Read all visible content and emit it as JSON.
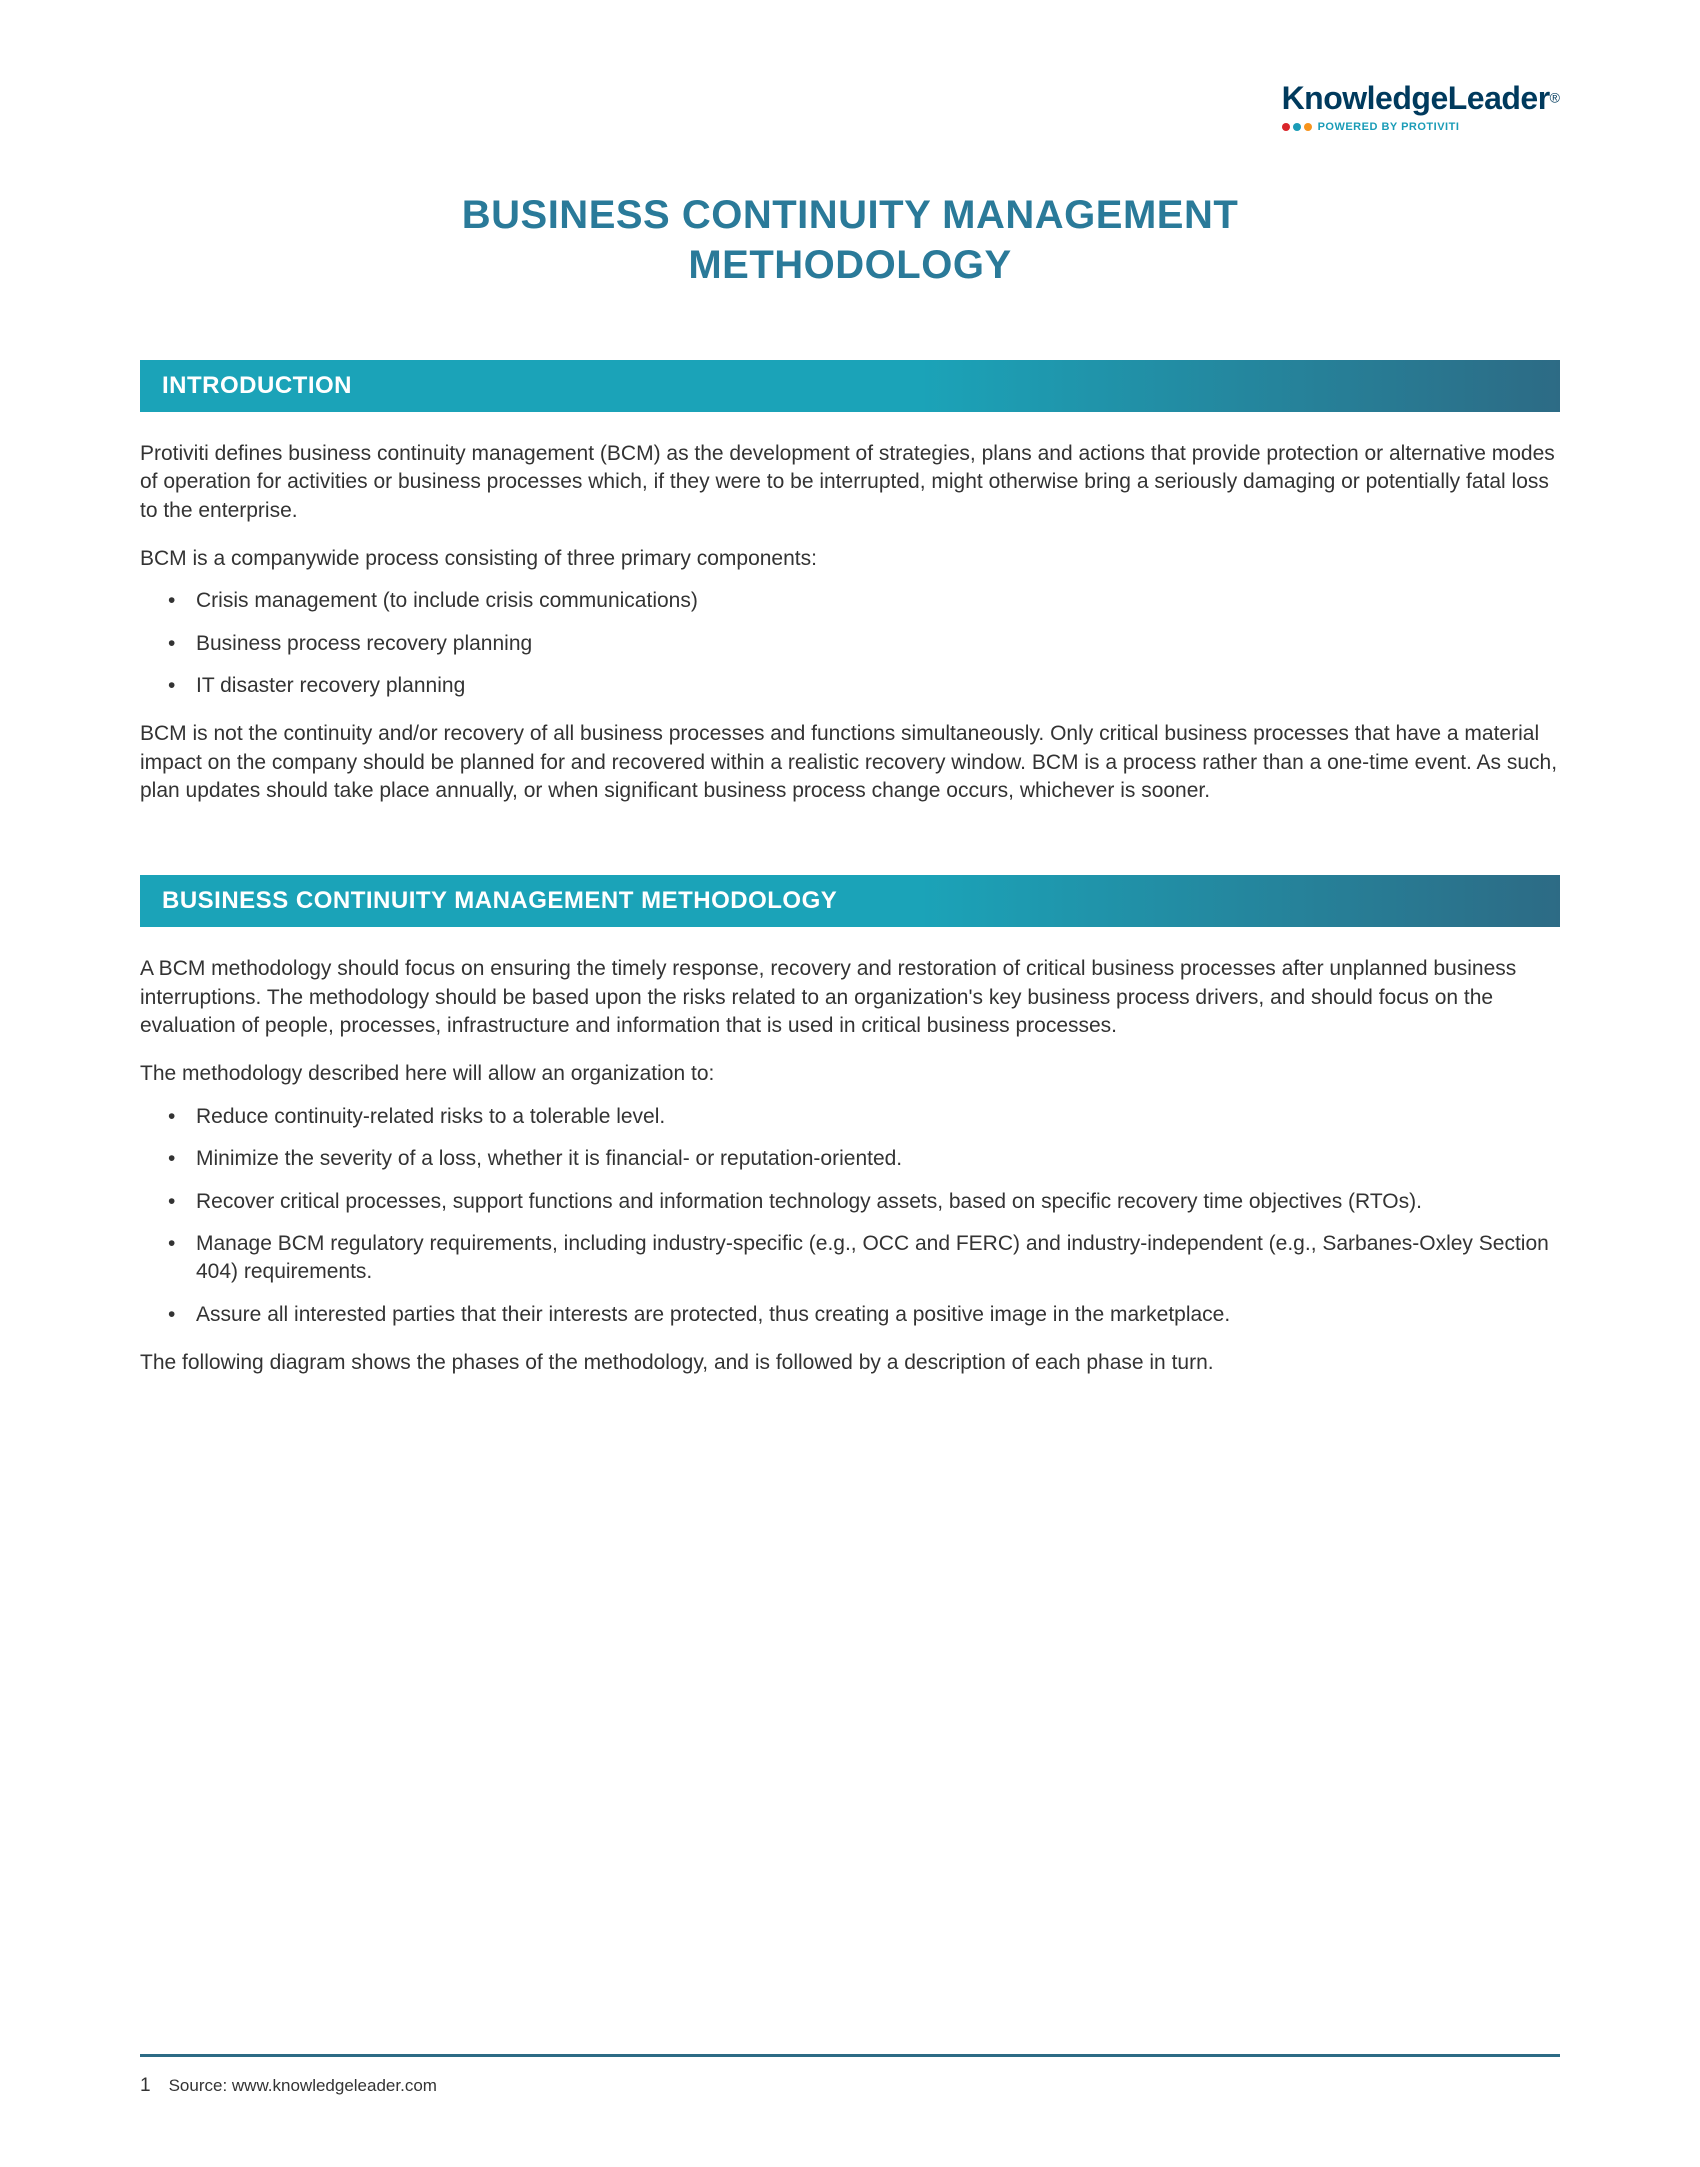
{
  "brand": {
    "name": "KnowledgeLeader",
    "trademark": "®",
    "tagline": "POWERED BY PROTIVITI",
    "dot_colors": [
      "#d9252a",
      "#1a9cb7",
      "#f7941d"
    ],
    "brand_color": "#003a5d",
    "tagline_color": "#1a9cb7"
  },
  "title": {
    "line1": "BUSINESS CONTINUITY MANAGEMENT",
    "line2": "METHODOLOGY",
    "color": "#2a7a99",
    "fontsize": 40
  },
  "section_header_style": {
    "gradient_start": "#1ba3b8",
    "gradient_end": "#2d6b85",
    "text_color": "#ffffff",
    "fontsize": 24
  },
  "sections": {
    "intro": {
      "heading": "INTRODUCTION",
      "para1": "Protiviti defines business continuity management (BCM) as the development of strategies, plans and actions that provide protection or alternative modes of operation for activities or business processes which, if they were to be interrupted, might otherwise bring a seriously damaging or potentially fatal loss to the enterprise.",
      "para2": "BCM is a companywide process consisting of three primary components:",
      "bullets": [
        "Crisis management (to include crisis communications)",
        "Business process recovery planning",
        "IT disaster recovery planning"
      ],
      "para3": "BCM is not the continuity and/or recovery of all business processes and functions simultaneously. Only critical business processes that have a material impact on the company should be planned for and recovered within a realistic recovery window. BCM is a process rather than a one-time event. As such, plan updates should take place annually, or when significant business process change occurs, whichever is sooner."
    },
    "methodology": {
      "heading": "BUSINESS CONTINUITY MANAGEMENT METHODOLOGY",
      "para1": "A BCM methodology should focus on ensuring the timely response, recovery and restoration of critical business processes after unplanned business interruptions. The methodology should be based upon the risks related to an organization's key business process drivers, and should focus on the evaluation of people, processes, infrastructure and information that is used in critical business processes.",
      "para2": "The methodology described here will allow an organization to:",
      "bullets": [
        "Reduce continuity-related risks to a tolerable level.",
        "Minimize the severity of a loss, whether it is financial- or reputation-oriented.",
        "Recover critical processes, support functions and information technology assets, based on specific recovery time objectives (RTOs).",
        "Manage BCM regulatory requirements, including industry-specific (e.g., OCC and FERC) and industry-independent (e.g., Sarbanes-Oxley Section 404) requirements.",
        "Assure all interested parties that their interests are protected, thus creating a positive image in the marketplace."
      ],
      "para3": "The following diagram shows the phases of the methodology, and is followed by a description of each phase in turn."
    }
  },
  "body_style": {
    "fontsize": 21,
    "color": "#333333",
    "line_height": 1.35
  },
  "footer": {
    "page_number": "1",
    "source_label": "Source: www.knowledgeleader.com",
    "rule_color": "#2d6b85"
  }
}
